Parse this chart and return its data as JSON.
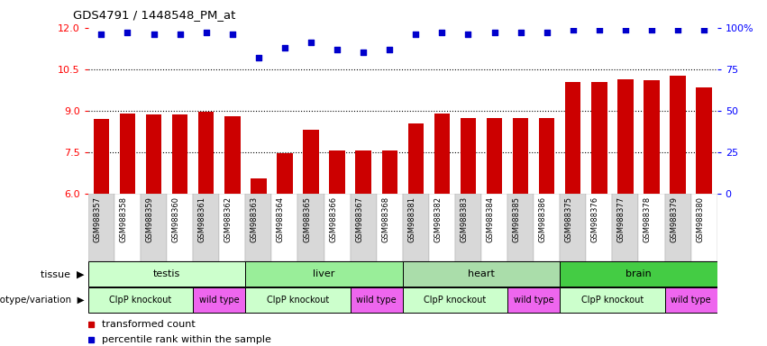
{
  "title": "GDS4791 / 1448548_PM_at",
  "samples": [
    "GSM988357",
    "GSM988358",
    "GSM988359",
    "GSM988360",
    "GSM988361",
    "GSM988362",
    "GSM988363",
    "GSM988364",
    "GSM988365",
    "GSM988366",
    "GSM988367",
    "GSM988368",
    "GSM988381",
    "GSM988382",
    "GSM988383",
    "GSM988384",
    "GSM988385",
    "GSM988386",
    "GSM988375",
    "GSM988376",
    "GSM988377",
    "GSM988378",
    "GSM988379",
    "GSM988380"
  ],
  "bar_values": [
    8.7,
    8.9,
    8.85,
    8.85,
    8.95,
    8.8,
    6.55,
    7.45,
    8.3,
    7.55,
    7.55,
    7.55,
    8.55,
    8.9,
    8.75,
    8.75,
    8.75,
    8.75,
    10.05,
    10.05,
    10.15,
    10.1,
    10.25,
    9.85
  ],
  "percentile_values": [
    96,
    97,
    96,
    96,
    97,
    96,
    82,
    88,
    91,
    87,
    85,
    87,
    96,
    97,
    96,
    97,
    97,
    97,
    99,
    99,
    99,
    99,
    99,
    99
  ],
  "bar_color": "#cc0000",
  "dot_color": "#0000cc",
  "ylim_left": [
    6,
    12
  ],
  "yticks_left": [
    6,
    7.5,
    9,
    10.5,
    12
  ],
  "ylim_right": [
    0,
    100
  ],
  "yticks_right": [
    0,
    25,
    50,
    75,
    100
  ],
  "yticklabels_right": [
    "0",
    "25",
    "50",
    "75",
    "100%"
  ],
  "hlines": [
    7.5,
    9.0,
    10.5
  ],
  "tissue_groups": [
    {
      "label": "testis",
      "start": 0,
      "end": 6,
      "color": "#ccffcc"
    },
    {
      "label": "liver",
      "start": 6,
      "end": 12,
      "color": "#99ee99"
    },
    {
      "label": "heart",
      "start": 12,
      "end": 18,
      "color": "#aaddaa"
    },
    {
      "label": "brain",
      "start": 18,
      "end": 24,
      "color": "#44cc44"
    }
  ],
  "genotype_groups": [
    {
      "label": "ClpP knockout",
      "start": 0,
      "end": 4,
      "color": "#ccffcc"
    },
    {
      "label": "wild type",
      "start": 4,
      "end": 6,
      "color": "#ee66ee"
    },
    {
      "label": "ClpP knockout",
      "start": 6,
      "end": 10,
      "color": "#ccffcc"
    },
    {
      "label": "wild type",
      "start": 10,
      "end": 12,
      "color": "#ee66ee"
    },
    {
      "label": "ClpP knockout",
      "start": 12,
      "end": 16,
      "color": "#ccffcc"
    },
    {
      "label": "wild type",
      "start": 16,
      "end": 18,
      "color": "#ee66ee"
    },
    {
      "label": "ClpP knockout",
      "start": 18,
      "end": 22,
      "color": "#ccffcc"
    },
    {
      "label": "wild type",
      "start": 22,
      "end": 24,
      "color": "#ee66ee"
    }
  ],
  "tissue_label": "tissue",
  "genotype_label": "genotype/variation",
  "legend_items": [
    {
      "label": "transformed count",
      "color": "#cc0000"
    },
    {
      "label": "percentile rank within the sample",
      "color": "#0000cc"
    }
  ],
  "plot_bg": "#ffffff",
  "tick_bg_odd": "#d8d8d8",
  "tick_bg_even": "#ffffff"
}
